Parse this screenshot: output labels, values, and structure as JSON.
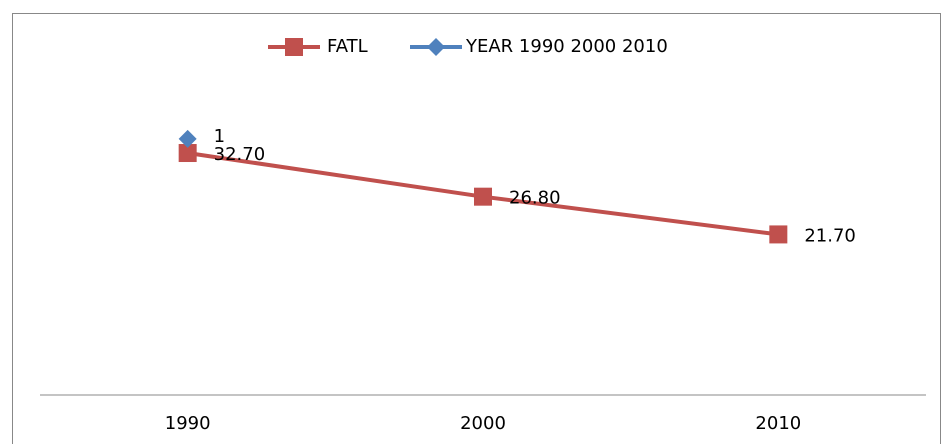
{
  "chart_data": {
    "type": "line",
    "categories": [
      "1990",
      "2000",
      "2010"
    ],
    "series": [
      {
        "name": "FATL",
        "color": "#c0504d",
        "marker": "square",
        "values": [
          32.7,
          26.8,
          21.7
        ],
        "value_labels": [
          "32.70",
          "26.80",
          "21.70"
        ]
      },
      {
        "name": "YEAR 1990 2000 2010",
        "color": "#4f81bd",
        "marker": "diamond",
        "axis": "y2",
        "values": [
          1,
          null,
          null
        ]
      }
    ],
    "ylim": [
      0,
      45
    ],
    "y2lim": [
      0,
      1.3
    ],
    "legend": "top"
  }
}
